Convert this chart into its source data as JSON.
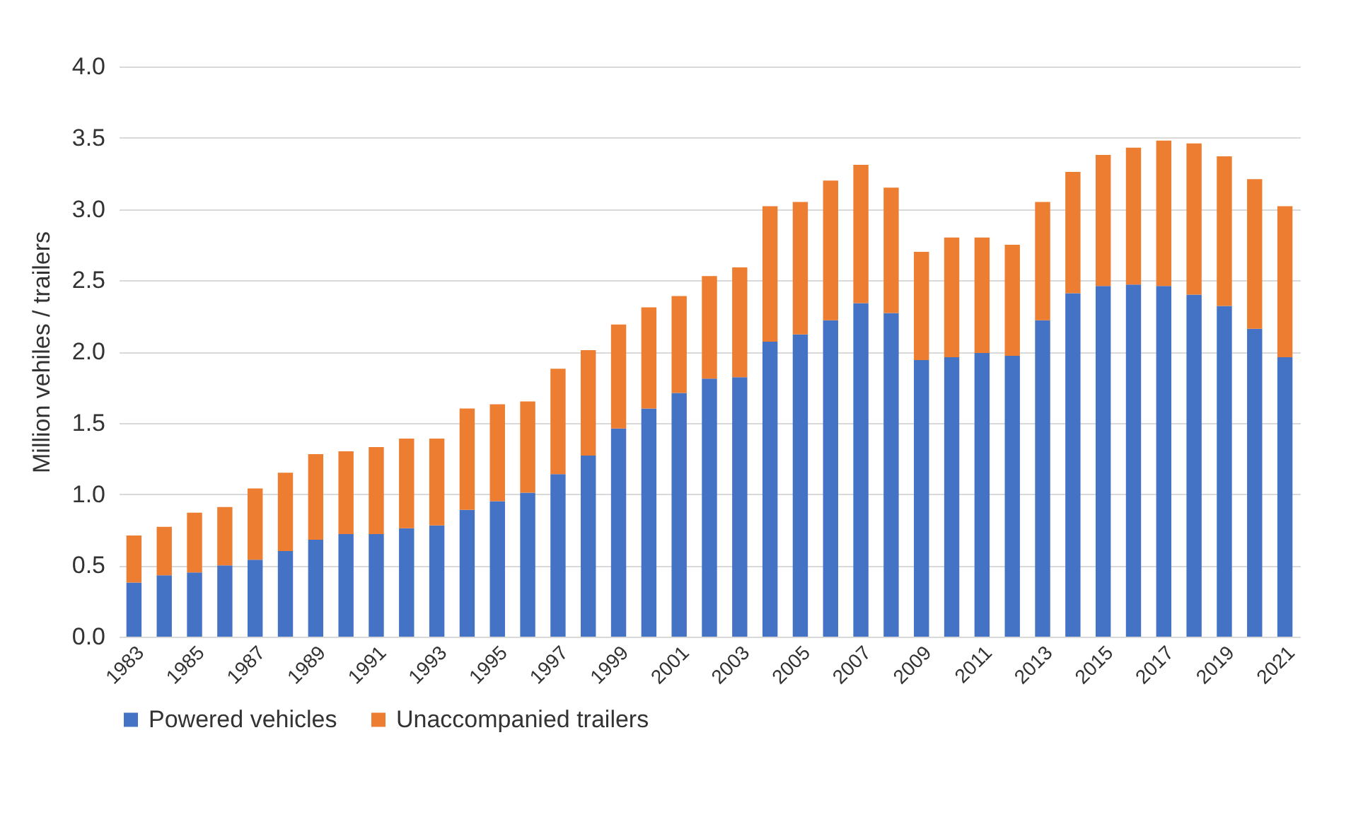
{
  "chart_data": {
    "type": "bar",
    "stacked": true,
    "ylabel": "Million vehiles / trailers",
    "categories": [
      "1983",
      null,
      "1985",
      null,
      "1987",
      null,
      "1989",
      null,
      "1991",
      null,
      "1993",
      null,
      "1995",
      null,
      "1997",
      null,
      "1999",
      null,
      "2001",
      null,
      "2003",
      null,
      "2005",
      null,
      "2007",
      null,
      "2009",
      null,
      "2011",
      null,
      "2013",
      null,
      "2015",
      null,
      "2017",
      null,
      "2019",
      null,
      "2021"
    ],
    "series": [
      {
        "name": "Powered vehicles",
        "color": "#4472c4",
        "values": [
          0.38,
          0.43,
          0.45,
          0.5,
          0.54,
          0.6,
          0.68,
          0.72,
          0.72,
          0.76,
          0.78,
          0.89,
          0.95,
          1.01,
          1.14,
          1.27,
          1.46,
          1.6,
          1.71,
          1.81,
          1.82,
          2.07,
          2.12,
          2.22,
          2.34,
          2.27,
          1.94,
          1.96,
          1.99,
          1.97,
          2.22,
          2.41,
          2.46,
          2.47,
          2.46,
          2.4,
          2.32,
          2.16,
          1.96
        ]
      },
      {
        "name": "Unaccompanied trailers",
        "color": "#ed7d31",
        "values": [
          0.33,
          0.34,
          0.42,
          0.41,
          0.5,
          0.55,
          0.6,
          0.58,
          0.61,
          0.63,
          0.61,
          0.71,
          0.68,
          0.64,
          0.74,
          0.74,
          0.73,
          0.71,
          0.68,
          0.72,
          0.77,
          0.95,
          0.93,
          0.98,
          0.97,
          0.88,
          0.76,
          0.84,
          0.81,
          0.78,
          0.83,
          0.85,
          0.92,
          0.96,
          1.02,
          1.06,
          1.05,
          1.05,
          1.06
        ]
      }
    ],
    "ylim": [
      0,
      4
    ],
    "yticks": [
      {
        "value": 0,
        "label": "0.0"
      },
      {
        "value": 0.5,
        "label": "0.5"
      },
      {
        "value": 1,
        "label": "1.0"
      },
      {
        "value": 1.5,
        "label": "1.5"
      },
      {
        "value": 2,
        "label": "2.0"
      },
      {
        "value": 2.5,
        "label": "2.5"
      },
      {
        "value": 3,
        "label": "3.0"
      },
      {
        "value": 3.5,
        "label": "3.5"
      },
      {
        "value": 4,
        "label": "4.0"
      }
    ],
    "grid": "y",
    "legend": "bottom"
  }
}
